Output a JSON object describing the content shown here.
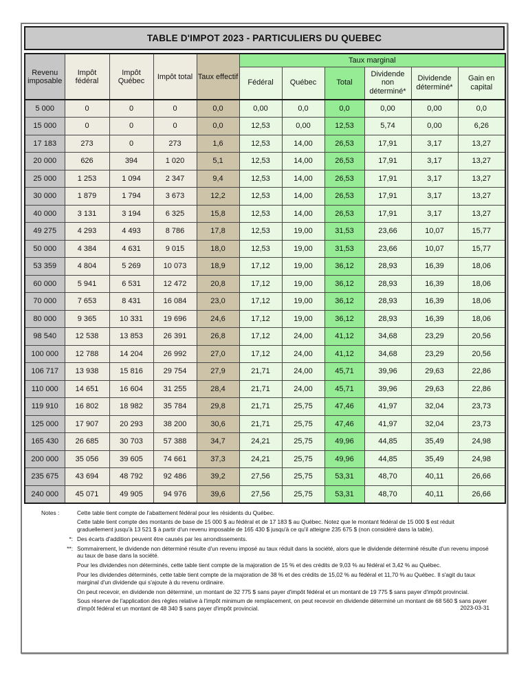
{
  "title": "TABLE D'IMPOT 2023 - PARTICULIERS DU QUEBEC",
  "colors": {
    "bright_green": "#95ec95",
    "pale_green": "#e9f8e3",
    "tan": "#ccc3a8",
    "cream": "#eeebe1",
    "gray": "#c6c6c6"
  },
  "table": {
    "header": {
      "revenu": "Revenu imposable",
      "impot_federal": "Impôt fédéral",
      "impot_quebec": "Impôt Québec",
      "impot_total": "Impôt total",
      "taux_effectif": "Taux effectif",
      "taux_marginal": "Taux marginal",
      "sub": [
        "Fédéral",
        "Québec",
        "Total",
        "Dividende non déterminé*",
        "Dividende déterminé*",
        "Gain en capital"
      ]
    },
    "rows": [
      [
        "5 000",
        "0",
        "0",
        "0",
        "0,0",
        "0,00",
        "0,0",
        "0,0",
        "0,00",
        "0,00",
        "0,0"
      ],
      [
        "15 000",
        "0",
        "0",
        "0",
        "0,0",
        "12,53",
        "0,00",
        "12,53",
        "5,74",
        "0,00",
        "6,26"
      ],
      [
        "17 183",
        "273",
        "0",
        "273",
        "1,6",
        "12,53",
        "14,00",
        "26,53",
        "17,91",
        "3,17",
        "13,27"
      ],
      [
        "20 000",
        "626",
        "394",
        "1 020",
        "5,1",
        "12,53",
        "14,00",
        "26,53",
        "17,91",
        "3,17",
        "13,27"
      ],
      [
        "25 000",
        "1 253",
        "1 094",
        "2 347",
        "9,4",
        "12,53",
        "14,00",
        "26,53",
        "17,91",
        "3,17",
        "13,27"
      ],
      [
        "30 000",
        "1 879",
        "1 794",
        "3 673",
        "12,2",
        "12,53",
        "14,00",
        "26,53",
        "17,91",
        "3,17",
        "13,27"
      ],
      [
        "40 000",
        "3 131",
        "3 194",
        "6 325",
        "15,8",
        "12,53",
        "14,00",
        "26,53",
        "17,91",
        "3,17",
        "13,27"
      ],
      [
        "49 275",
        "4 293",
        "4 493",
        "8 786",
        "17,8",
        "12,53",
        "19,00",
        "31,53",
        "23,66",
        "10,07",
        "15,77"
      ],
      [
        "50 000",
        "4 384",
        "4 631",
        "9 015",
        "18,0",
        "12,53",
        "19,00",
        "31,53",
        "23,66",
        "10,07",
        "15,77"
      ],
      [
        "53 359",
        "4 804",
        "5 269",
        "10 073",
        "18,9",
        "17,12",
        "19,00",
        "36,12",
        "28,93",
        "16,39",
        "18,06"
      ],
      [
        "60 000",
        "5 941",
        "6 531",
        "12 472",
        "20,8",
        "17,12",
        "19,00",
        "36,12",
        "28,93",
        "16,39",
        "18,06"
      ],
      [
        "70 000",
        "7 653",
        "8 431",
        "16 084",
        "23,0",
        "17,12",
        "19,00",
        "36,12",
        "28,93",
        "16,39",
        "18,06"
      ],
      [
        "80 000",
        "9 365",
        "10 331",
        "19 696",
        "24,6",
        "17,12",
        "19,00",
        "36,12",
        "28,93",
        "16,39",
        "18,06"
      ],
      [
        "98 540",
        "12 538",
        "13 853",
        "26 391",
        "26,8",
        "17,12",
        "24,00",
        "41,12",
        "34,68",
        "23,29",
        "20,56"
      ],
      [
        "100 000",
        "12 788",
        "14 204",
        "26 992",
        "27,0",
        "17,12",
        "24,00",
        "41,12",
        "34,68",
        "23,29",
        "20,56"
      ],
      [
        "106 717",
        "13 938",
        "15 816",
        "29 754",
        "27,9",
        "21,71",
        "24,00",
        "45,71",
        "39,96",
        "29,63",
        "22,86"
      ],
      [
        "110 000",
        "14 651",
        "16 604",
        "31 255",
        "28,4",
        "21,71",
        "24,00",
        "45,71",
        "39,96",
        "29,63",
        "22,86"
      ],
      [
        "119 910",
        "16 802",
        "18 982",
        "35 784",
        "29,8",
        "21,71",
        "25,75",
        "47,46",
        "41,97",
        "32,04",
        "23,73"
      ],
      [
        "125 000",
        "17 907",
        "20 293",
        "38 200",
        "30,6",
        "21,71",
        "25,75",
        "47,46",
        "41,97",
        "32,04",
        "23,73"
      ],
      [
        "165 430",
        "26 685",
        "30 703",
        "57 388",
        "34,7",
        "24,21",
        "25,75",
        "49,96",
        "44,85",
        "35,49",
        "24,98"
      ],
      [
        "200 000",
        "35 056",
        "39 605",
        "74 661",
        "37,3",
        "24,21",
        "25,75",
        "49,96",
        "44,85",
        "35,49",
        "24,98"
      ],
      [
        "235 675",
        "43 694",
        "48 792",
        "92 486",
        "39,2",
        "27,56",
        "25,75",
        "53,31",
        "48,70",
        "40,11",
        "26,66"
      ],
      [
        "240 000",
        "45 071",
        "49 905",
        "94 976",
        "39,6",
        "27,56",
        "25,75",
        "53,31",
        "48,70",
        "40,11",
        "26,66"
      ]
    ]
  },
  "notes": {
    "paragraphs": [
      {
        "marker": "Notes :",
        "text": "Cette table tient compte de l'abattement fédéral pour les résidents du Québec."
      },
      {
        "marker": "",
        "text": "Cette table tient compte des montants de base de 15 000 $ au fédéral et de 17 183 $ au Québec. Notez que le montant fédéral de 15 000 $ est réduit graduellement jusqu'à 13 521 $ à partir d'un revenu imposable de 165 430 $ jusqu'à ce qu'il atteigne 235 675 $ (non considéré dans la table)."
      },
      {
        "marker": "*:",
        "text": "Des écarts d'addition peuvent être causés par les arrondissements."
      },
      {
        "marker": "**:",
        "text": "Sommairement, le dividende non déterminé résulte d'un revenu imposé au taux réduit dans la société, alors que le dividende déterminé résulte d'un revenu imposé au taux de base dans la société."
      },
      {
        "marker": "",
        "text": "Pour les dividendes non déterminés, cette table tient compte de la majoration de 15 % et des crédits de 9,03 % au fédéral et 3,42 % au Québec."
      },
      {
        "marker": "",
        "text": "Pour les dividendes déterminés, cette table tient compte de la majoration de 38 % et des crédits de 15,02 % au fédéral et 11,70 % au Québec. Il s'agit du taux marginal d'un dividende qui s'ajoute à du revenu ordinaire."
      },
      {
        "marker": "",
        "text": "On peut recevoir, en dividende non déterminé, un montant de 32 775 $ sans payer d'impôt fédéral et un montant de 19 775 $ sans payer d'impôt provincial."
      },
      {
        "marker": "",
        "text": "Sous réserve de l'application des règles relative à l'impôt minimum de remplacement, on peut recevoir en dividende déterminé un montant de 68 560 $ sans payer d'impôt fédéral et un montant de 48 340 $ sans payer d'impôt provincial."
      }
    ],
    "date": "2023-03-31"
  }
}
